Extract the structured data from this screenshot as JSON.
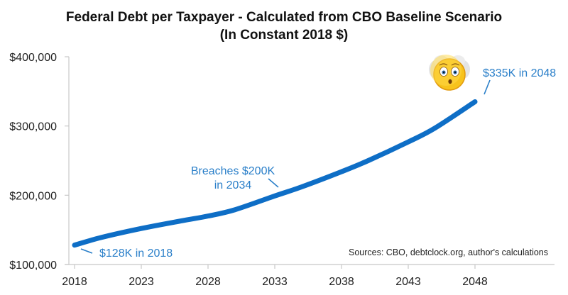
{
  "chart_data": {
    "type": "line",
    "title": "Federal Debt per Taxpayer - Calculated from CBO Baseline Scenario",
    "subtitle": "(In Constant 2018 $)",
    "xlabel": "",
    "ylabel": "",
    "x": [
      2018,
      2020,
      2023,
      2026,
      2028,
      2030,
      2033,
      2035,
      2038,
      2040,
      2043,
      2045,
      2048
    ],
    "series": [
      {
        "name": "Federal Debt per Taxpayer",
        "color": "#0e6ec6",
        "values": [
          128000,
          139000,
          152000,
          163000,
          170000,
          179000,
          199000,
          212000,
          234000,
          250000,
          277000,
          297000,
          335000
        ]
      }
    ],
    "xlim": [
      2018,
      2053
    ],
    "ylim": [
      100000,
      400000
    ],
    "x_ticks": [
      "2018",
      "2023",
      "2028",
      "2033",
      "2038",
      "2043",
      "2048"
    ],
    "y_ticks": [
      "$100,000",
      "$200,000",
      "$300,000",
      "$400,000"
    ],
    "grid": false,
    "legend": "none",
    "annotations": [
      {
        "text": "$128K in 2018",
        "x": 2018,
        "y": 128000
      },
      {
        "text": "Breaches $200K",
        "text2": "in 2034",
        "x": 2034,
        "y": 200000
      },
      {
        "text": "$335K in 2048",
        "x": 2048,
        "y": 335000
      }
    ],
    "source_note": "Sources: CBO, debtclock.org, author's calculations",
    "decoration": "worried-face-emoji"
  }
}
